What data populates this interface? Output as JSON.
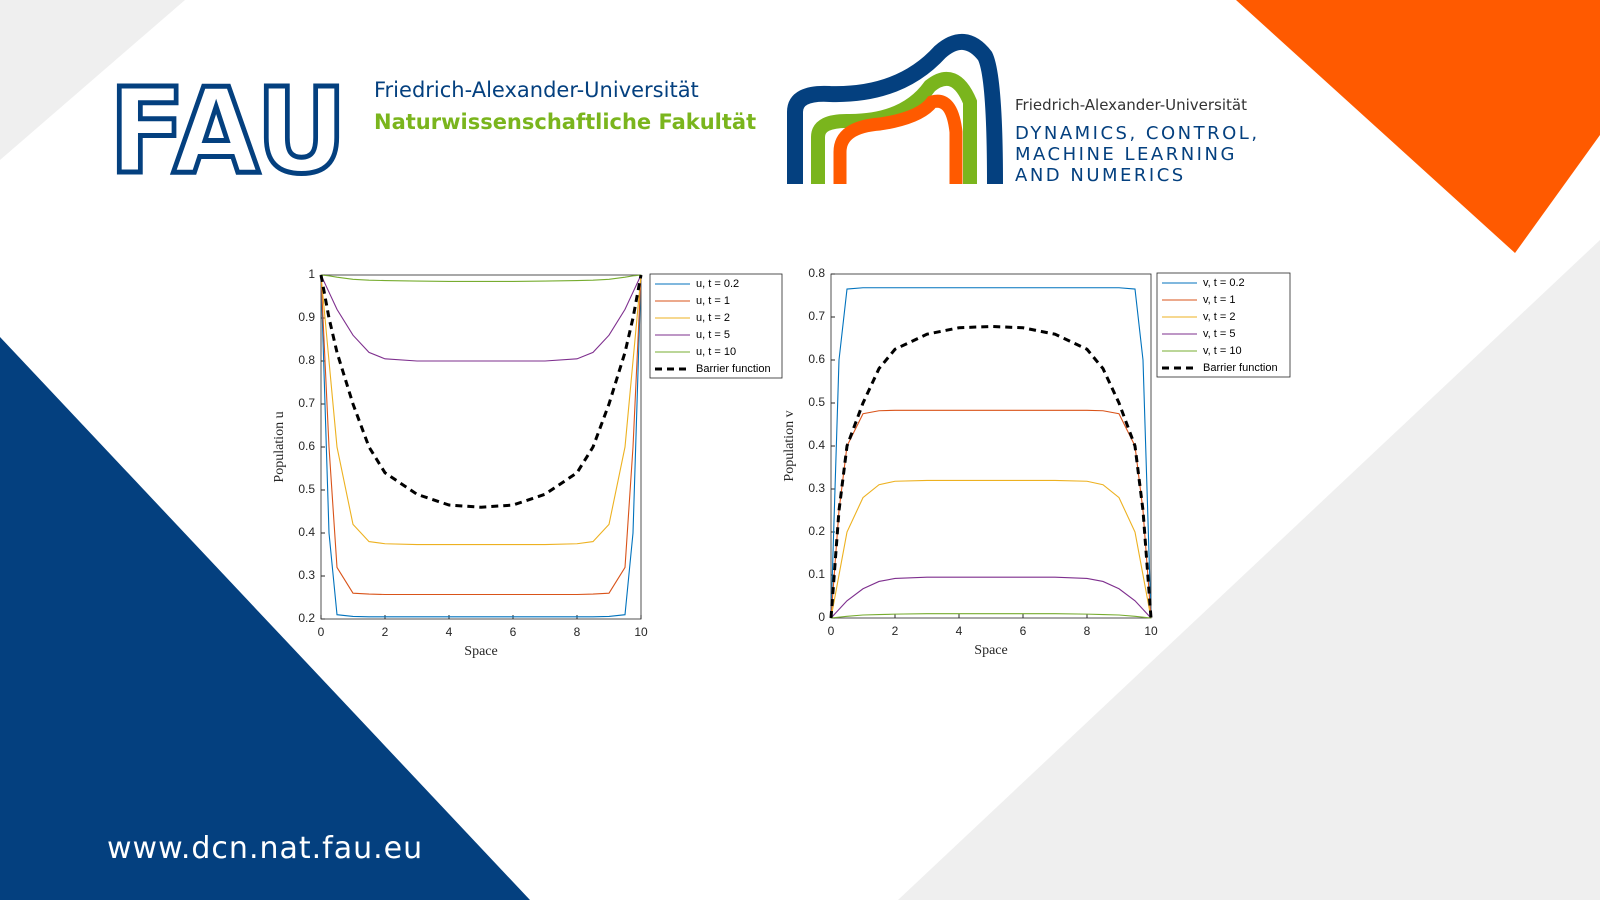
{
  "header": {
    "fau_logo": "FAU",
    "fau_name": "Friedrich-Alexander-Universität",
    "fau_faculty": "Naturwissenschaftliche Fakultät",
    "dcn_university": "Friedrich-Alexander-Universität",
    "dcn_lines": [
      "DYNAMICS, CONTROL,",
      "MACHINE LEARNING",
      "AND NUMERICS"
    ]
  },
  "footer": {
    "url": "www.dcn.nat.fau.eu"
  },
  "chart_data": [
    {
      "type": "line",
      "xlabel": "Space",
      "ylabel": "Population u",
      "legend": "outside right",
      "x": [
        0,
        0.25,
        0.5,
        1,
        1.5,
        2,
        3,
        4,
        5,
        6,
        7,
        8,
        8.5,
        9,
        9.5,
        9.75,
        10
      ],
      "xlim": [
        0,
        10
      ],
      "xticks": [
        0,
        2,
        4,
        6,
        8,
        10
      ],
      "ylim": [
        0.2,
        1
      ],
      "yticks": [
        0.2,
        0.3,
        0.4,
        0.5,
        0.6,
        0.7,
        0.8,
        0.9,
        1
      ],
      "series": [
        {
          "name": "u, t = 0.2",
          "color": "#0072bd",
          "values": [
            1,
            0.4,
            0.21,
            0.206,
            0.205,
            0.205,
            0.205,
            0.205,
            0.205,
            0.205,
            0.205,
            0.205,
            0.205,
            0.206,
            0.21,
            0.4,
            1
          ]
        },
        {
          "name": "u, t = 1",
          "color": "#d95319",
          "values": [
            1,
            0.6,
            0.32,
            0.26,
            0.258,
            0.257,
            0.257,
            0.257,
            0.257,
            0.257,
            0.257,
            0.257,
            0.258,
            0.26,
            0.32,
            0.6,
            1
          ]
        },
        {
          "name": "u, t = 2",
          "color": "#edb120",
          "values": [
            1,
            0.8,
            0.6,
            0.42,
            0.38,
            0.375,
            0.373,
            0.373,
            0.373,
            0.373,
            0.373,
            0.375,
            0.38,
            0.42,
            0.6,
            0.8,
            1
          ]
        },
        {
          "name": "u, t = 5",
          "color": "#7e2f8e",
          "values": [
            1,
            0.96,
            0.92,
            0.86,
            0.82,
            0.805,
            0.8,
            0.8,
            0.8,
            0.8,
            0.8,
            0.805,
            0.82,
            0.86,
            0.92,
            0.96,
            1
          ]
        },
        {
          "name": "u, t = 10",
          "color": "#77ac30",
          "values": [
            1,
            0.998,
            0.995,
            0.99,
            0.988,
            0.987,
            0.986,
            0.985,
            0.985,
            0.985,
            0.986,
            0.987,
            0.988,
            0.99,
            0.995,
            0.998,
            1
          ]
        },
        {
          "name": "Barrier function",
          "color": "#000000",
          "linestyle": "dashed",
          "values": [
            1,
            0.9,
            0.82,
            0.7,
            0.6,
            0.54,
            0.49,
            0.465,
            0.46,
            0.465,
            0.49,
            0.54,
            0.6,
            0.7,
            0.82,
            0.9,
            1
          ]
        }
      ]
    },
    {
      "type": "line",
      "xlabel": "Space",
      "ylabel": "Population v",
      "legend": "outside right",
      "x": [
        0,
        0.25,
        0.5,
        1,
        1.5,
        2,
        3,
        4,
        5,
        6,
        7,
        8,
        8.5,
        9,
        9.5,
        9.75,
        10
      ],
      "xlim": [
        0,
        10
      ],
      "xticks": [
        0,
        2,
        4,
        6,
        8,
        10
      ],
      "ylim": [
        0,
        0.8
      ],
      "yticks": [
        0,
        0.1,
        0.2,
        0.3,
        0.4,
        0.5,
        0.6,
        0.7,
        0.8
      ],
      "series": [
        {
          "name": "v, t = 0.2",
          "color": "#0072bd",
          "values": [
            0,
            0.6,
            0.765,
            0.768,
            0.768,
            0.768,
            0.768,
            0.768,
            0.768,
            0.768,
            0.768,
            0.768,
            0.768,
            0.768,
            0.765,
            0.6,
            0
          ]
        },
        {
          "name": "v, t = 1",
          "color": "#d95319",
          "values": [
            0,
            0.25,
            0.4,
            0.475,
            0.482,
            0.483,
            0.483,
            0.483,
            0.483,
            0.483,
            0.483,
            0.483,
            0.482,
            0.475,
            0.4,
            0.25,
            0
          ]
        },
        {
          "name": "v, t = 2",
          "color": "#edb120",
          "values": [
            0,
            0.1,
            0.2,
            0.28,
            0.31,
            0.318,
            0.32,
            0.32,
            0.32,
            0.32,
            0.32,
            0.318,
            0.31,
            0.28,
            0.2,
            0.1,
            0
          ]
        },
        {
          "name": "v, t = 5",
          "color": "#7e2f8e",
          "values": [
            0,
            0.02,
            0.04,
            0.068,
            0.085,
            0.092,
            0.095,
            0.095,
            0.095,
            0.095,
            0.095,
            0.092,
            0.085,
            0.068,
            0.04,
            0.02,
            0
          ]
        },
        {
          "name": "v, t = 10",
          "color": "#77ac30",
          "values": [
            0,
            0.002,
            0.004,
            0.007,
            0.008,
            0.009,
            0.01,
            0.01,
            0.01,
            0.01,
            0.01,
            0.009,
            0.008,
            0.007,
            0.004,
            0.002,
            0
          ]
        },
        {
          "name": "Barrier function",
          "color": "#000000",
          "linestyle": "dashed",
          "values": [
            0,
            0.25,
            0.4,
            0.5,
            0.58,
            0.625,
            0.66,
            0.675,
            0.678,
            0.675,
            0.66,
            0.625,
            0.58,
            0.5,
            0.4,
            0.25,
            0
          ]
        }
      ]
    }
  ]
}
